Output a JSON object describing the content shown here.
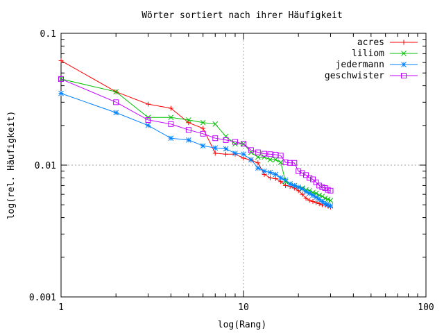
{
  "chart_data": {
    "type": "line",
    "title": "Wörter sortiert nach ihrer Häufigkeit",
    "xlabel": "log(Rang)",
    "ylabel": "log(rel. Häufigkeit)",
    "xscale": "log",
    "yscale": "log",
    "xlim": [
      1,
      100
    ],
    "ylim": [
      0.001,
      0.1
    ],
    "xticks": [
      {
        "value": 1,
        "label": "1"
      },
      {
        "value": 10,
        "label": "10"
      },
      {
        "value": 100,
        "label": "100"
      }
    ],
    "yticks": [
      {
        "value": 0.001,
        "label": "0.001"
      },
      {
        "value": 0.01,
        "label": "0.01"
      },
      {
        "value": 0.1,
        "label": "0.1"
      }
    ],
    "grid": true,
    "legend_position": "top-right",
    "x": [
      1,
      2,
      3,
      4,
      5,
      6,
      7,
      8,
      9,
      10,
      11,
      12,
      13,
      14,
      15,
      16,
      17,
      18,
      19,
      20,
      21,
      22,
      23,
      24,
      25,
      26,
      27,
      28,
      29,
      30
    ],
    "series": [
      {
        "name": "acres",
        "color": "#ff0000",
        "marker": "plus",
        "values": [
          0.062,
          0.036,
          0.029,
          0.027,
          0.021,
          0.019,
          0.0123,
          0.0121,
          0.0121,
          0.0113,
          0.0109,
          0.0104,
          0.0085,
          0.008,
          0.0079,
          0.0075,
          0.007,
          0.0069,
          0.0067,
          0.0064,
          0.006,
          0.0056,
          0.0054,
          0.0053,
          0.0052,
          0.0051,
          0.005,
          0.005,
          0.0049,
          0.0048
        ]
      },
      {
        "name": "liliom",
        "color": "#00c000",
        "marker": "cross",
        "values": [
          0.045,
          0.036,
          0.023,
          0.023,
          0.022,
          0.021,
          0.0205,
          0.0165,
          0.0145,
          0.0145,
          0.0125,
          0.0115,
          0.0115,
          0.011,
          0.011,
          0.0105,
          0.0075,
          0.0072,
          0.007,
          0.0068,
          0.0067,
          0.0065,
          0.0064,
          0.0062,
          0.0061,
          0.0059,
          0.0058,
          0.0056,
          0.0055,
          0.0054
        ]
      },
      {
        "name": "jedermann",
        "color": "#0080ff",
        "marker": "star",
        "values": [
          0.035,
          0.025,
          0.02,
          0.016,
          0.0155,
          0.014,
          0.0135,
          0.0133,
          0.0123,
          0.0121,
          0.011,
          0.0095,
          0.009,
          0.0088,
          0.0085,
          0.008,
          0.0077,
          0.0072,
          0.007,
          0.0068,
          0.0066,
          0.0063,
          0.0061,
          0.0059,
          0.0057,
          0.0055,
          0.0053,
          0.0051,
          0.005,
          0.0049
        ]
      },
      {
        "name": "geschwister",
        "color": "#c000ff",
        "marker": "square",
        "values": [
          0.045,
          0.03,
          0.022,
          0.0205,
          0.0185,
          0.0173,
          0.016,
          0.0155,
          0.015,
          0.0145,
          0.013,
          0.0125,
          0.0122,
          0.0121,
          0.012,
          0.0118,
          0.0105,
          0.0104,
          0.0104,
          0.009,
          0.0087,
          0.0084,
          0.008,
          0.0078,
          0.0074,
          0.007,
          0.0068,
          0.0067,
          0.0065,
          0.0064
        ]
      }
    ]
  }
}
